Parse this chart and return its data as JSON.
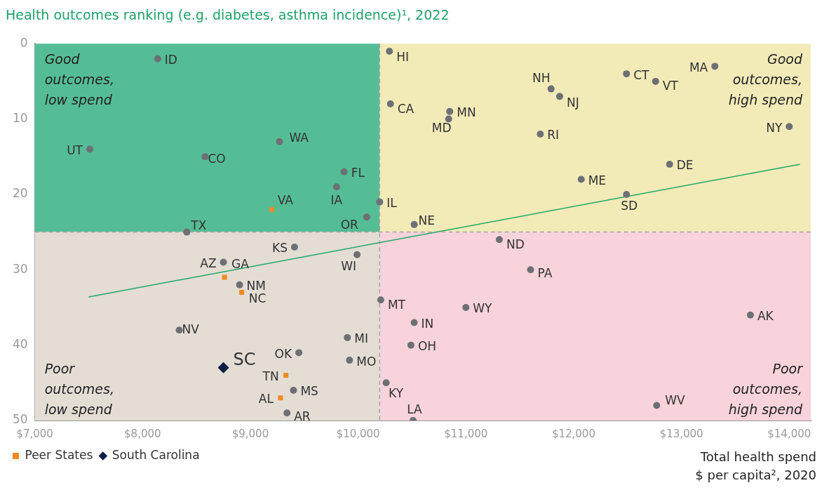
{
  "chart_data": {
    "type": "scatter",
    "title": "Health outcomes ranking (e.g. diabetes, asthma incidence)¹, 2022",
    "xlabel": "Total health spend\n$ per capita², 2020",
    "xlim": [
      7000,
      14200
    ],
    "xticks": [
      {
        "value": 7000,
        "label": "$7,000"
      },
      {
        "value": 8000,
        "label": "$8,000"
      },
      {
        "value": 9000,
        "label": "$9,000"
      },
      {
        "value": 10000,
        "label": "$10,000"
      },
      {
        "value": 11000,
        "label": "$11,000"
      },
      {
        "value": 12000,
        "label": "$12,000"
      },
      {
        "value": 13000,
        "label": "$13,000"
      },
      {
        "value": 14000,
        "label": "$14,000"
      }
    ],
    "ylim": [
      50,
      0
    ],
    "yticks": [
      0,
      10,
      20,
      30,
      40,
      50
    ],
    "grid": false,
    "legend": "bottom left",
    "series": [
      {
        "color": "#6d7075",
        "marker": "circle",
        "x": [
          8140,
          7510,
          8580,
          9270,
          9870,
          9800,
          10200,
          10080,
          8410,
          10290,
          10300,
          10850,
          10840,
          11790,
          11870,
          12490,
          12760,
          13310,
          11690,
          14000,
          12890,
          12070,
          12490,
          10520,
          9410,
          8750,
          8900,
          9990,
          8340,
          9450,
          9400,
          9340,
          9900,
          9920,
          10210,
          10260,
          10510,
          10520,
          10490,
          11000,
          11310,
          11600,
          13640,
          12770
        ],
        "values": [
          2,
          14,
          15,
          13,
          17,
          19,
          21,
          23,
          25,
          1,
          8,
          9,
          10,
          6,
          7,
          4,
          5,
          3,
          12,
          11,
          16,
          18,
          20,
          24,
          27,
          29,
          32,
          28,
          38,
          41,
          46,
          49,
          39,
          42,
          34,
          45,
          50,
          37,
          40,
          35,
          26,
          30,
          36,
          48
        ]
      },
      {
        "name": "Peer States",
        "color": "#f28a24",
        "marker": "square",
        "x": [
          9200,
          8760,
          8920,
          9330,
          9280
        ],
        "values": [
          22,
          31,
          33,
          44,
          47
        ]
      },
      {
        "name": "South Carolina",
        "color": "#0d1f45",
        "marker": "diamond",
        "x": [
          8750
        ],
        "values": [
          43
        ]
      },
      {
        "type": "line",
        "color": "#22a866",
        "marker": "none",
        "x": [
          7500,
          14100
        ],
        "values": [
          33.6,
          16.0
        ]
      }
    ],
    "ref_lines": [
      {
        "axis": "x",
        "value": 10200,
        "color": "#a8a29c",
        "line_style": "dashed"
      },
      {
        "axis": "y",
        "value": 25,
        "color": "#a8a29c",
        "line_style": "dashed"
      }
    ],
    "bands": [
      {
        "axis": "x",
        "from": 7000,
        "to": 10200,
        "color": "#55bd95",
        "label": "Good outcomes, low spend"
      },
      {
        "axis": "x",
        "from": 10200,
        "to": 14200,
        "color": "#f2ebb8",
        "label": "Good outcomes, high spend"
      },
      {
        "axis": "x",
        "from": 7000,
        "to": 10200,
        "color": "#e3ddd4",
        "label": "Poor outcomes, low spend"
      },
      {
        "axis": "x",
        "from": 10200,
        "to": 14200,
        "color": "#f8d3dc",
        "label": "Poor outcomes, high spend"
      }
    ],
    "annotations": [
      {
        "text": "ID",
        "x": 8140,
        "y": 2
      },
      {
        "text": "UT",
        "x": 7510,
        "y": 14
      },
      {
        "text": "CO",
        "x": 8580,
        "y": 15
      },
      {
        "text": "WA",
        "x": 9270,
        "y": 13
      },
      {
        "text": "FL",
        "x": 9870,
        "y": 17
      },
      {
        "text": "IA",
        "x": 9800,
        "y": 19
      },
      {
        "text": "IL",
        "x": 10200,
        "y": 21
      },
      {
        "text": "OR",
        "x": 10080,
        "y": 23
      },
      {
        "text": "TX",
        "x": 8410,
        "y": 25
      },
      {
        "text": "HI",
        "x": 10290,
        "y": 1
      },
      {
        "text": "CA",
        "x": 10300,
        "y": 8
      },
      {
        "text": "MN",
        "x": 10850,
        "y": 9
      },
      {
        "text": "MD",
        "x": 10840,
        "y": 10
      },
      {
        "text": "NH",
        "x": 11790,
        "y": 6
      },
      {
        "text": "NJ",
        "x": 11870,
        "y": 7
      },
      {
        "text": "CT",
        "x": 12490,
        "y": 4
      },
      {
        "text": "VT",
        "x": 12760,
        "y": 5
      },
      {
        "text": "MA",
        "x": 13310,
        "y": 3
      },
      {
        "text": "RI",
        "x": 11690,
        "y": 12
      },
      {
        "text": "NY",
        "x": 14000,
        "y": 11
      },
      {
        "text": "DE",
        "x": 12890,
        "y": 16
      },
      {
        "text": "ME",
        "x": 12070,
        "y": 18
      },
      {
        "text": "SD",
        "x": 12490,
        "y": 20
      },
      {
        "text": "NE",
        "x": 10520,
        "y": 24
      },
      {
        "text": "KS",
        "x": 9410,
        "y": 27
      },
      {
        "text": "AZ",
        "x": 8750,
        "y": 29
      },
      {
        "text": "NM",
        "x": 8900,
        "y": 32
      },
      {
        "text": "WI",
        "x": 9990,
        "y": 28
      },
      {
        "text": "NV",
        "x": 8340,
        "y": 38
      },
      {
        "text": "OK",
        "x": 9450,
        "y": 41
      },
      {
        "text": "MS",
        "x": 9400,
        "y": 46
      },
      {
        "text": "AR",
        "x": 9340,
        "y": 49
      },
      {
        "text": "MI",
        "x": 9900,
        "y": 39
      },
      {
        "text": "MO",
        "x": 9920,
        "y": 42
      },
      {
        "text": "MT",
        "x": 10210,
        "y": 34
      },
      {
        "text": "KY",
        "x": 10260,
        "y": 45
      },
      {
        "text": "LA",
        "x": 10510,
        "y": 50
      },
      {
        "text": "IN",
        "x": 10520,
        "y": 37
      },
      {
        "text": "OH",
        "x": 10490,
        "y": 40
      },
      {
        "text": "WY",
        "x": 11000,
        "y": 35
      },
      {
        "text": "ND",
        "x": 11310,
        "y": 26
      },
      {
        "text": "PA",
        "x": 11600,
        "y": 30
      },
      {
        "text": "AK",
        "x": 13640,
        "y": 36
      },
      {
        "text": "WV",
        "x": 12770,
        "y": 48
      },
      {
        "text": "VA",
        "x": 9200,
        "y": 22
      },
      {
        "text": "GA",
        "x": 8760,
        "y": 31
      },
      {
        "text": "NC",
        "x": 8920,
        "y": 33
      },
      {
        "text": "TN",
        "x": 9330,
        "y": 44
      },
      {
        "text": "AL",
        "x": 9280,
        "y": 47
      },
      {
        "text": "SC",
        "x": 8750,
        "y": 43
      }
    ]
  }
}
